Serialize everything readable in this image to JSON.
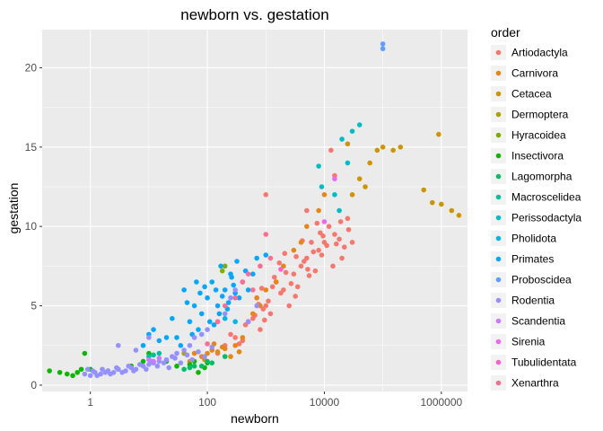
{
  "chart_data": {
    "type": "scatter",
    "title": "newborn vs. gestation",
    "xlabel": "newborn",
    "ylabel": "gestation",
    "x_scale": "log10",
    "xlim": [
      0.15,
      2800000
    ],
    "ylim": [
      -0.4,
      22.4
    ],
    "x_ticks": [
      {
        "value": 1,
        "label": "1"
      },
      {
        "value": 100,
        "label": "100"
      },
      {
        "value": 10000,
        "label": "10000"
      },
      {
        "value": 1000000,
        "label": "1000000"
      }
    ],
    "y_ticks": [
      {
        "value": 0,
        "label": "0"
      },
      {
        "value": 5,
        "label": "5"
      },
      {
        "value": 10,
        "label": "10"
      },
      {
        "value": 15,
        "label": "15"
      },
      {
        "value": 20,
        "label": "20"
      }
    ],
    "grid": true,
    "legend_title": "order",
    "legend_position": "right",
    "series": [
      {
        "name": "Artiodactyla",
        "color": "#F8766D",
        "points": [
          [
            1000,
            5
          ],
          [
            2000,
            6
          ],
          [
            3000,
            7
          ],
          [
            5000,
            8
          ],
          [
            8000,
            8.5
          ],
          [
            10000,
            9
          ],
          [
            15000,
            9.5
          ],
          [
            20000,
            8
          ],
          [
            500,
            4
          ],
          [
            700,
            5.5
          ],
          [
            1500,
            6.5
          ],
          [
            4000,
            7.5
          ],
          [
            6000,
            9
          ],
          [
            12000,
            10
          ],
          [
            25000,
            10.5
          ],
          [
            30000,
            9
          ],
          [
            800,
            3.5
          ],
          [
            2500,
            5
          ],
          [
            1200,
            4.5
          ],
          [
            3500,
            6.2
          ],
          [
            7000,
            7.2
          ],
          [
            9000,
            8.2
          ],
          [
            18000,
            9.2
          ],
          [
            300,
            3
          ],
          [
            600,
            4.2
          ],
          [
            1800,
            5.8
          ],
          [
            4500,
            7.8
          ],
          [
            11000,
            8.8
          ],
          [
            14000,
            7.5
          ],
          [
            22000,
            8.7
          ],
          [
            400,
            2.8
          ],
          [
            900,
            4.8
          ],
          [
            1300,
            6.2
          ],
          [
            2200,
            7.1
          ],
          [
            3200,
            5.6
          ],
          [
            5500,
            6.9
          ],
          [
            8500,
            9.6
          ],
          [
            13000,
            14.8
          ],
          [
            15000,
            13.2
          ],
          [
            1000,
            12
          ],
          [
            5000,
            11
          ],
          [
            200,
            2.5
          ],
          [
            150,
            2
          ],
          [
            250,
            3.2
          ],
          [
            350,
            2.6
          ],
          [
            450,
            3.8
          ],
          [
            650,
            4.4
          ],
          [
            750,
            5.1
          ],
          [
            850,
            6.1
          ],
          [
            950,
            4.1
          ],
          [
            1100,
            5.3
          ],
          [
            1400,
            6.8
          ],
          [
            1700,
            7.7
          ],
          [
            2100,
            8.3
          ],
          [
            2700,
            6.4
          ],
          [
            3300,
            8.1
          ],
          [
            4200,
            9.1
          ],
          [
            5200,
            7.3
          ],
          [
            6500,
            8.4
          ],
          [
            7500,
            10.2
          ],
          [
            9500,
            9.4
          ],
          [
            16000,
            8.9
          ],
          [
            19000,
            10.3
          ],
          [
            26000,
            9.8
          ]
        ]
      },
      {
        "name": "Carnivora",
        "color": "#E68613",
        "points": [
          [
            80,
            1.8
          ],
          [
            100,
            2
          ],
          [
            120,
            2.2
          ],
          [
            150,
            2.1
          ],
          [
            200,
            2.3
          ],
          [
            50,
            1.5
          ],
          [
            60,
            2
          ],
          [
            300,
            2.5
          ],
          [
            400,
            3
          ],
          [
            500,
            4
          ],
          [
            700,
            5.5
          ],
          [
            1000,
            6
          ],
          [
            2000,
            7.5
          ],
          [
            3000,
            8.5
          ],
          [
            4000,
            9
          ],
          [
            8000,
            11
          ],
          [
            10000,
            12
          ],
          [
            1500,
            6.5
          ],
          [
            250,
            1.8
          ],
          [
            180,
            2.4
          ],
          [
            90,
            1.6
          ],
          [
            130,
            2.6
          ],
          [
            350,
            2.1
          ],
          [
            600,
            4.5
          ],
          [
            800,
            5
          ],
          [
            5000,
            10
          ]
        ]
      },
      {
        "name": "Cetacea",
        "color": "#CD9600",
        "points": [
          [
            30000,
            12
          ],
          [
            40000,
            13
          ],
          [
            60000,
            14
          ],
          [
            80000,
            14.8
          ],
          [
            100000,
            15
          ],
          [
            150000,
            14.8
          ],
          [
            200000,
            15
          ],
          [
            500000,
            12.3
          ],
          [
            700000,
            11.5
          ],
          [
            1000000,
            11.4
          ],
          [
            1500000,
            11
          ],
          [
            2000000,
            10.7
          ],
          [
            900000,
            15.8
          ],
          [
            50000,
            12.5
          ],
          [
            25000,
            15.2
          ]
        ]
      },
      {
        "name": "Dermoptera",
        "color": "#ABA300",
        "points": [
          [
            40,
            2
          ]
        ]
      },
      {
        "name": "Hyracoidea",
        "color": "#7CAE00",
        "points": [
          [
            200,
            7.5
          ],
          [
            180,
            7.2
          ]
        ]
      },
      {
        "name": "Insectivora",
        "color": "#0CB702",
        "points": [
          [
            0.2,
            0.9
          ],
          [
            0.3,
            0.8
          ],
          [
            0.4,
            0.7
          ],
          [
            0.5,
            0.6
          ],
          [
            0.6,
            0.8
          ],
          [
            0.7,
            1
          ],
          [
            0.8,
            2
          ],
          [
            1,
            1
          ],
          [
            2,
            0.9
          ],
          [
            3,
            1
          ],
          [
            5,
            1.2
          ],
          [
            8,
            1.5
          ],
          [
            10,
            2
          ],
          [
            20,
            1.5
          ],
          [
            30,
            1.2
          ],
          [
            50,
            1.3
          ],
          [
            60,
            1.5
          ],
          [
            70,
            0.8
          ],
          [
            90,
            1.1
          ],
          [
            100,
            1.4
          ]
        ]
      },
      {
        "name": "Lagomorpha",
        "color": "#00BE67",
        "points": [
          [
            40,
            1
          ],
          [
            50,
            1.1
          ],
          [
            60,
            1.2
          ],
          [
            80,
            1.2
          ],
          [
            100,
            1.5
          ],
          [
            120,
            1.4
          ],
          [
            200,
            1.8
          ]
        ]
      },
      {
        "name": "Macroscelidea",
        "color": "#00C19A",
        "points": [
          [
            10,
            1.8
          ],
          [
            12,
            1.9
          ],
          [
            15,
            2
          ]
        ]
      },
      {
        "name": "Perissodactyla",
        "color": "#00BFC4",
        "points": [
          [
            20000,
            15.5
          ],
          [
            30000,
            16
          ],
          [
            40000,
            16.4
          ],
          [
            25000,
            14
          ],
          [
            15000,
            12
          ],
          [
            8000,
            13.8
          ],
          [
            9000,
            12.5
          ],
          [
            18000,
            11
          ]
        ]
      },
      {
        "name": "Pholidota",
        "color": "#00B8E7",
        "points": [
          [
            300,
            4
          ],
          [
            200,
            4.2
          ]
        ]
      },
      {
        "name": "Primates",
        "color": "#00A9FF",
        "points": [
          [
            30,
            3
          ],
          [
            50,
            4
          ],
          [
            60,
            5
          ],
          [
            80,
            4.5
          ],
          [
            100,
            5.5
          ],
          [
            150,
            5
          ],
          [
            200,
            6
          ],
          [
            300,
            5.8
          ],
          [
            400,
            6.5
          ],
          [
            500,
            6
          ],
          [
            40,
            6
          ],
          [
            70,
            3.5
          ],
          [
            120,
            6.5
          ],
          [
            250,
            7
          ],
          [
            350,
            5.5
          ],
          [
            20,
            3
          ],
          [
            25,
            4.2
          ],
          [
            45,
            5.2
          ],
          [
            90,
            6.2
          ],
          [
            180,
            5.6
          ],
          [
            220,
            4.8
          ],
          [
            280,
            6.3
          ],
          [
            450,
            7.2
          ],
          [
            600,
            7
          ],
          [
            130,
            3.8
          ],
          [
            160,
            4.5
          ],
          [
            35,
            2.5
          ],
          [
            55,
            3.2
          ],
          [
            65,
            6.5
          ],
          [
            75,
            5.8
          ],
          [
            110,
            4
          ],
          [
            140,
            6
          ],
          [
            170,
            7.5
          ],
          [
            230,
            5.2
          ],
          [
            260,
            6.8
          ],
          [
            320,
            7.8
          ],
          [
            15,
            2.8
          ],
          [
            8,
            2.5
          ],
          [
            10,
            3.2
          ],
          [
            12,
            3.5
          ],
          [
            700,
            8
          ],
          [
            1000,
            8.2
          ]
        ]
      },
      {
        "name": "Proboscidea",
        "color": "#619CFF",
        "points": [
          [
            100000,
            21.2
          ],
          [
            100000,
            21.5
          ]
        ]
      },
      {
        "name": "Rodentia",
        "color": "#9590FF",
        "points": [
          [
            0.8,
            0.7
          ],
          [
            1,
            0.6
          ],
          [
            1.2,
            0.8
          ],
          [
            1.5,
            0.7
          ],
          [
            2,
            0.9
          ],
          [
            2.5,
            0.8
          ],
          [
            3,
            1
          ],
          [
            4,
            0.9
          ],
          [
            5,
            1.1
          ],
          [
            6,
            1
          ],
          [
            8,
            1.2
          ],
          [
            10,
            1.3
          ],
          [
            12,
            1.4
          ],
          [
            15,
            1.5
          ],
          [
            20,
            1.6
          ],
          [
            25,
            1.8
          ],
          [
            30,
            2
          ],
          [
            40,
            2.2
          ],
          [
            50,
            2.5
          ],
          [
            60,
            3
          ],
          [
            80,
            3.2
          ],
          [
            100,
            3.5
          ],
          [
            150,
            4
          ],
          [
            200,
            4.5
          ],
          [
            250,
            5.5
          ],
          [
            300,
            6
          ],
          [
            0.9,
            1
          ],
          [
            1.1,
            0.9
          ],
          [
            1.3,
            0.6
          ],
          [
            1.6,
            1
          ],
          [
            1.8,
            0.8
          ],
          [
            2.2,
            0.7
          ],
          [
            2.8,
            1.1
          ],
          [
            3.5,
            0.8
          ],
          [
            4.5,
            1.2
          ],
          [
            5.5,
            0.9
          ],
          [
            7,
            1.3
          ],
          [
            9,
            1
          ],
          [
            11,
            1.5
          ],
          [
            14,
            1.2
          ],
          [
            18,
            1.4
          ],
          [
            22,
            1.1
          ],
          [
            28,
            1.7
          ],
          [
            35,
            1.4
          ],
          [
            45,
            1.9
          ],
          [
            55,
            1.6
          ],
          [
            70,
            2.1
          ],
          [
            90,
            1.8
          ],
          [
            120,
            2.4
          ],
          [
            3,
            2.5
          ],
          [
            6,
            2.2
          ],
          [
            10,
            3
          ],
          [
            500,
            4
          ],
          [
            700,
            5
          ]
        ]
      },
      {
        "name": "Scandentia",
        "color": "#C77CFF",
        "points": [
          [
            10,
            1.6
          ],
          [
            12,
            1.5
          ],
          [
            15,
            1.7
          ]
        ]
      },
      {
        "name": "Sirenia",
        "color": "#ED68ED",
        "points": [
          [
            10000,
            10.3
          ],
          [
            15000,
            13
          ]
        ]
      },
      {
        "name": "Tubulidentata",
        "color": "#FF61CC",
        "points": [
          [
            1800,
            7.3
          ]
        ]
      },
      {
        "name": "Xenarthra",
        "color": "#FF6C91",
        "points": [
          [
            150,
            4
          ],
          [
            200,
            5
          ],
          [
            300,
            5.5
          ],
          [
            400,
            6.5
          ],
          [
            500,
            7
          ],
          [
            1000,
            9.5
          ],
          [
            1200,
            8
          ],
          [
            600,
            6
          ],
          [
            800,
            7.5
          ],
          [
            100,
            2.6
          ]
        ]
      }
    ]
  }
}
